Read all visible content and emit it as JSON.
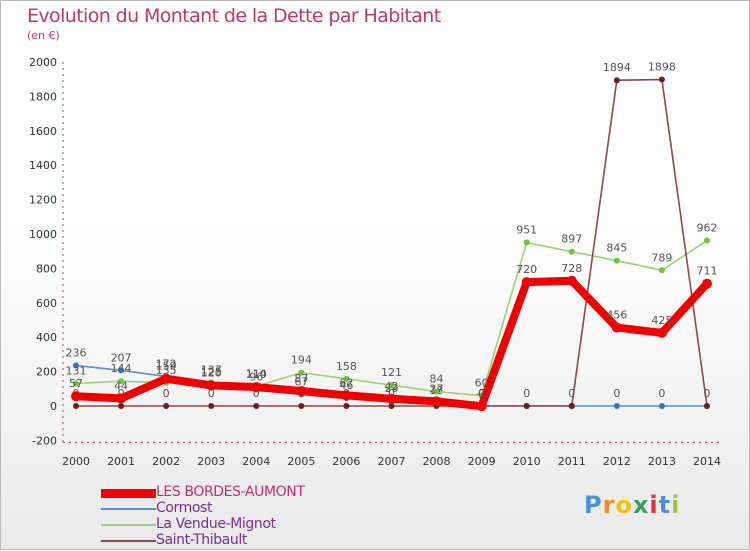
{
  "title": "Evolution du Montant de la Dette par Habitant",
  "unit": "(en €)",
  "logo": {
    "letters": [
      "P",
      "r",
      "o",
      "x",
      "i",
      "t",
      "i"
    ],
    "colors": [
      "#4a90d9",
      "#f08c1e",
      "#f4c20d",
      "#3aa15a",
      "#e0312f",
      "#4a90d9",
      "#9ac53d"
    ]
  },
  "chart_data": {
    "type": "line",
    "title": "Evolution du Montant de la Dette par Habitant",
    "ylabel": "(en €)",
    "categories": [
      "2000",
      "2001",
      "2002",
      "2003",
      "2004",
      "2005",
      "2006",
      "2007",
      "2008",
      "2009",
      "2010",
      "2011",
      "2012",
      "2013",
      "2014"
    ],
    "ylim": [
      -200,
      2000
    ],
    "yticks": [
      -200,
      0,
      200,
      400,
      600,
      800,
      1000,
      1200,
      1400,
      1600,
      1800,
      2000
    ],
    "grid": false,
    "series": [
      {
        "name": "Cormost",
        "color": "#5b8fc9",
        "dot": "#3d72b8",
        "values": [
          236,
          207,
          172,
          125,
          96,
          67,
          46,
          29,
          18,
          0,
          0,
          0,
          0,
          0,
          0
        ],
        "labels": [
          "236",
          "207",
          "172",
          "125",
          "96",
          "67",
          "46",
          "29",
          "18",
          "0",
          "",
          "",
          "0",
          "0",
          ""
        ]
      },
      {
        "name": "La Vendue-Mignot",
        "color": "#99d474",
        "dot": "#73c03d",
        "values": [
          131,
          144,
          135,
          137,
          114,
          194,
          158,
          121,
          84,
          60,
          951,
          897,
          845,
          789,
          962
        ],
        "labels": [
          "131",
          "144",
          "135",
          "137",
          "114",
          "194",
          "158",
          "121",
          "84",
          "60",
          "951",
          "897",
          "845",
          "789",
          "962"
        ]
      },
      {
        "name": "Saint-Thibault",
        "color": "#8a4a4a",
        "dot": "#6b1e1e",
        "values": [
          0,
          0,
          0,
          0,
          0,
          0,
          0,
          0,
          0,
          0,
          0,
          0,
          1894,
          1898,
          0
        ],
        "labels": [
          "0",
          "0",
          "0",
          "0",
          "0",
          "",
          "0",
          "0",
          "",
          "0",
          "0",
          "0",
          "1894",
          "1898",
          "0"
        ]
      },
      {
        "name": "LES BORDES-AUMONT",
        "color": "#ee0000",
        "dot": "#ee0000",
        "values": [
          57,
          44,
          159,
          120,
          110,
          87,
          62,
          42,
          27,
          -1,
          720,
          728,
          456,
          425,
          711
        ],
        "labels": [
          "57",
          "44",
          "159",
          "120",
          "110",
          "87",
          "62",
          "42",
          "27",
          "-1",
          "720",
          "728",
          "456",
          "425",
          "711"
        ]
      }
    ]
  },
  "legend": [
    {
      "name": "LES BORDES-AUMONT",
      "color": "#ee0000",
      "width": 9
    },
    {
      "name": "Cormost",
      "color": "#5b8fc9",
      "width": 2
    },
    {
      "name": "La Vendue-Mignot",
      "color": "#99d474",
      "width": 2
    },
    {
      "name": "Saint-Thibault",
      "color": "#8a4a4a",
      "width": 2
    }
  ]
}
